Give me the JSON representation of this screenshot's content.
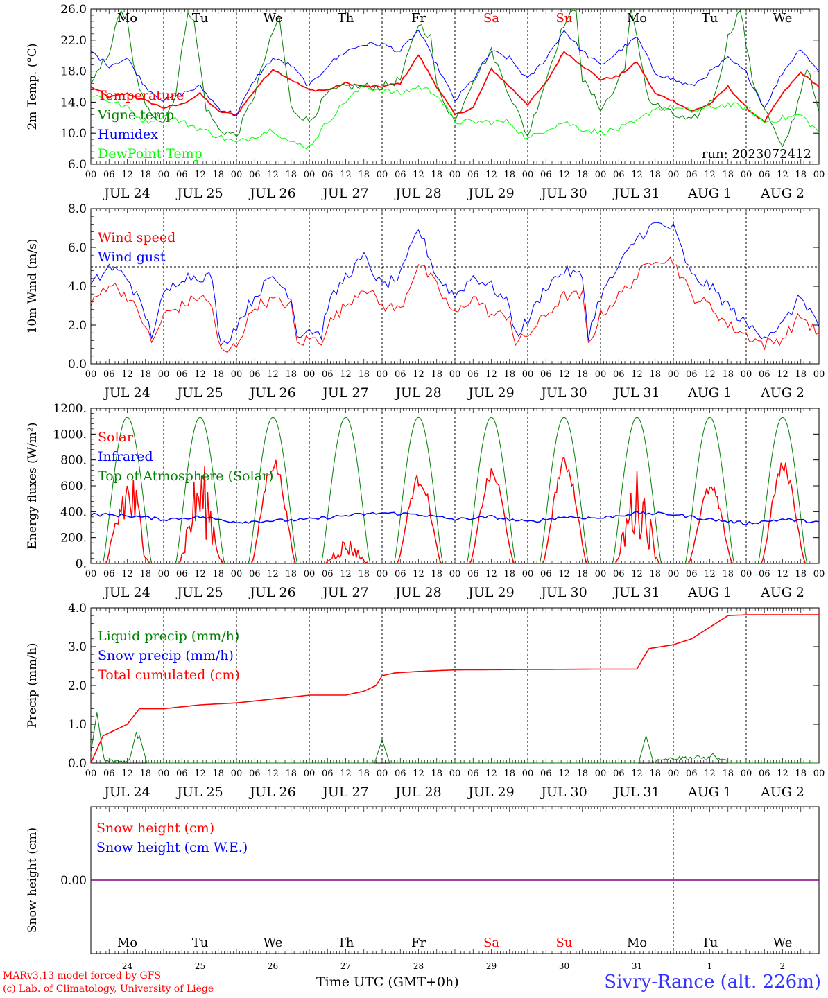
{
  "run_label": "run: 2023072412",
  "day_ticks": [
    "00",
    "06",
    "12",
    "18"
  ],
  "date_labels": [
    "JUL 24",
    "JUL 25",
    "JUL 26",
    "JUL 27",
    "JUL 28",
    "JUL 29",
    "JUL 30",
    "JUL 31",
    "AUG  1",
    "AUG  2"
  ],
  "weekdays": [
    {
      "label": "Mo",
      "weekend": false
    },
    {
      "label": "Tu",
      "weekend": false
    },
    {
      "label": "We",
      "weekend": false
    },
    {
      "label": "Th",
      "weekend": false
    },
    {
      "label": "Fr",
      "weekend": false
    },
    {
      "label": "Sa",
      "weekend": true
    },
    {
      "label": "Su",
      "weekend": true
    },
    {
      "label": "Mo",
      "weekend": false
    },
    {
      "label": "Tu",
      "weekend": false
    },
    {
      "label": "We",
      "weekend": false
    }
  ],
  "day_numbers": [
    "24",
    "25",
    "26",
    "27",
    "28",
    "29",
    "30",
    "31",
    "1",
    "2"
  ],
  "colors": {
    "red": "#ff0000",
    "green": "#008000",
    "blue": "#0000ff",
    "light_green": "#00ff00",
    "weekend": "#ff0000",
    "purple": "#800080"
  },
  "footer": {
    "credit1": "MARv3.13 model forced by GFS",
    "credit2": "(c) Lab. of Climatology, University of Liege",
    "xaxis_label": "Time UTC (GMT+0h)",
    "station": "Sivry-Rance (alt. 226m)"
  },
  "chart_data": [
    {
      "type": "line",
      "ylabel": "2m Temp. (°C)",
      "ylim": [
        6,
        28
      ],
      "yticks": [
        "6.0",
        "10.0",
        "14.0",
        "18.0",
        "22.0",
        "26.0"
      ],
      "x_unit": "hours since JUL 24 00 UTC",
      "series": [
        {
          "name": "Temperature",
          "color": "#ff0000",
          "x": [
            0,
            6,
            12,
            18,
            24,
            30,
            36,
            42,
            48,
            54,
            60,
            66,
            72,
            78,
            84,
            90,
            96,
            102,
            108,
            114,
            120,
            126,
            132,
            138,
            144,
            150,
            156,
            162,
            168,
            174,
            180,
            186,
            192,
            198,
            204,
            210,
            216,
            222,
            228,
            234,
            240
          ],
          "y": [
            17,
            15.5,
            16,
            15,
            14,
            14.5,
            16,
            13.5,
            13,
            16.5,
            19.5,
            18,
            16.5,
            16.5,
            17.5,
            17,
            17,
            17.5,
            21.5,
            17,
            13,
            14,
            19.5,
            17,
            14.5,
            17.5,
            22,
            20,
            18,
            18.5,
            20.5,
            16,
            15,
            13.5,
            14.5,
            17,
            14,
            12,
            16,
            19,
            17
          ]
        },
        {
          "name": "Vigne temp",
          "color": "#008000",
          "x": [
            0,
            6,
            10,
            12,
            14,
            18,
            24,
            28,
            32,
            34,
            38,
            42,
            48,
            54,
            58,
            62,
            66,
            72,
            78,
            84,
            90,
            96,
            102,
            108,
            112,
            114,
            120,
            126,
            132,
            138,
            144,
            150,
            156,
            160,
            162,
            168,
            172,
            176,
            178,
            184,
            192,
            198,
            206,
            210,
            214,
            218,
            224,
            228,
            232,
            236,
            240
          ],
          "y": [
            17,
            22,
            28,
            26,
            20,
            14,
            12,
            16,
            28,
            26,
            14,
            11,
            10,
            16,
            22,
            27,
            14,
            12,
            16,
            17,
            17,
            17,
            18,
            26,
            24,
            17,
            12,
            18,
            22,
            16,
            10,
            18,
            26,
            28,
            18,
            14,
            16,
            20,
            28,
            15,
            13,
            12,
            16,
            24,
            28,
            18,
            12,
            8,
            13,
            20,
            13
          ]
        },
        {
          "name": "Humidex",
          "color": "#0000ff",
          "x": [
            0,
            6,
            12,
            18,
            24,
            30,
            36,
            42,
            48,
            54,
            60,
            66,
            72,
            78,
            84,
            90,
            96,
            102,
            108,
            114,
            120,
            126,
            132,
            138,
            144,
            150,
            156,
            162,
            168,
            174,
            180,
            186,
            192,
            198,
            204,
            210,
            216,
            222,
            228,
            234,
            240
          ],
          "y": [
            22,
            20,
            21,
            17,
            15,
            16,
            17,
            14,
            13,
            18,
            21,
            20,
            17,
            20,
            22,
            23,
            23,
            22,
            25,
            20,
            15,
            18,
            22,
            21,
            18,
            21,
            25,
            22,
            20,
            22,
            24,
            19,
            18,
            17,
            19,
            21,
            19,
            14,
            19,
            22.5,
            19
          ]
        },
        {
          "name": "DewPoint Temp",
          "color": "#00ff00",
          "x": [
            0,
            6,
            12,
            18,
            24,
            30,
            36,
            42,
            48,
            54,
            60,
            66,
            72,
            78,
            84,
            90,
            96,
            102,
            108,
            114,
            120,
            126,
            132,
            138,
            144,
            150,
            156,
            162,
            168,
            174,
            180,
            186,
            192,
            198,
            204,
            210,
            216,
            222,
            228,
            234,
            240
          ],
          "y": [
            16,
            15,
            14,
            12,
            13,
            12,
            11,
            10,
            9,
            10,
            11,
            9,
            8.5,
            12,
            15,
            17,
            16.5,
            16,
            17,
            16,
            12,
            12,
            12,
            12,
            9.5,
            11,
            12,
            11,
            10.5,
            11,
            12,
            14,
            14,
            13.5,
            14,
            14.5,
            14,
            12,
            12.5,
            13,
            10.5
          ]
        }
      ]
    },
    {
      "type": "line",
      "ylabel": "10m Wind (m/s)",
      "ylim": [
        0,
        8
      ],
      "yticks": [
        "0.0",
        "2.0",
        "4.0",
        "6.0",
        "8.0"
      ],
      "reference_line": 5,
      "series": [
        {
          "name": "Wind speed",
          "color": "#ff0000",
          "x": [
            0,
            6,
            12,
            18,
            20,
            24,
            30,
            36,
            40,
            42,
            44,
            48,
            54,
            60,
            66,
            68,
            72,
            76,
            78,
            84,
            90,
            96,
            102,
            108,
            114,
            120,
            126,
            132,
            138,
            140,
            144,
            150,
            156,
            162,
            164,
            168,
            174,
            180,
            186,
            192,
            198,
            204,
            210,
            216,
            222,
            228,
            234,
            240
          ],
          "y": [
            3,
            4.2,
            3.5,
            2,
            1,
            2.5,
            3,
            3.5,
            3,
            1,
            0.5,
            1,
            3,
            3.3,
            3,
            1,
            1.3,
            1.2,
            2,
            3,
            4,
            3,
            2.8,
            5.2,
            4,
            2.5,
            3.5,
            2.5,
            2.5,
            1,
            1.5,
            2.5,
            3.5,
            3.5,
            1,
            2.5,
            3.5,
            4.5,
            5.5,
            5.3,
            3.5,
            3,
            2,
            1.5,
            1,
            1.3,
            2.5,
            1.5
          ]
        },
        {
          "name": "Wind gust",
          "color": "#0000ff",
          "x": [
            0,
            6,
            12,
            18,
            20,
            24,
            30,
            36,
            40,
            42,
            44,
            48,
            54,
            60,
            66,
            68,
            72,
            76,
            78,
            84,
            90,
            96,
            102,
            108,
            114,
            120,
            126,
            132,
            138,
            140,
            144,
            150,
            156,
            162,
            164,
            168,
            174,
            180,
            186,
            192,
            198,
            204,
            210,
            216,
            222,
            228,
            234,
            240
          ],
          "y": [
            4,
            5,
            4.5,
            2.5,
            1.5,
            3.5,
            4.5,
            4.5,
            4.5,
            1.5,
            1,
            2,
            3.5,
            4.5,
            3.5,
            1.5,
            1.8,
            1.5,
            3,
            4.5,
            5.5,
            4,
            4.5,
            7,
            4.5,
            3.5,
            4.5,
            4,
            3,
            1.5,
            2.2,
            4,
            4.8,
            4.5,
            1.5,
            3.5,
            5,
            6.5,
            7.2,
            7,
            4.5,
            4,
            3,
            2,
            1.5,
            2,
            3.5,
            2
          ]
        }
      ]
    },
    {
      "type": "line",
      "ylabel": "Energy fluxes (W/m²)",
      "ylim": [
        0,
        1200
      ],
      "yticks": [
        "0.",
        "200.",
        "400.",
        "600.",
        "800.",
        "1000.",
        "1200."
      ],
      "series": [
        {
          "name": "Solar",
          "color": "#ff0000",
          "peaks": [
            800,
            800,
            830,
            200,
            700,
            740,
            830,
            740,
            620,
            800
          ]
        },
        {
          "name": "Infrared",
          "color": "#0000ff",
          "x": [
            0,
            12,
            24,
            36,
            48,
            60,
            72,
            84,
            96,
            108,
            120,
            132,
            144,
            156,
            168,
            180,
            192,
            204,
            216,
            228,
            240
          ],
          "y": [
            380,
            370,
            340,
            360,
            320,
            330,
            340,
            370,
            390,
            380,
            340,
            360,
            320,
            360,
            350,
            390,
            380,
            340,
            310,
            340,
            320
          ]
        },
        {
          "name": "Top of Atmosphere (Solar)",
          "color": "#008000",
          "peak": 1130
        }
      ]
    },
    {
      "type": "line",
      "ylabel": "Precip (mm/h)",
      "ylim": [
        0,
        4
      ],
      "yticks": [
        "0.0",
        "1.0",
        "2.0",
        "3.0",
        "4.0"
      ],
      "series": [
        {
          "name": "Liquid precip (mm/h)",
          "color": "#008000",
          "spikes": [
            [
              2,
              1.3
            ],
            [
              15,
              0.8
            ],
            [
              16,
              0.7
            ],
            [
              96,
              0.6
            ],
            [
              183,
              0.7
            ],
            [
              205,
              0.25
            ]
          ]
        },
        {
          "name": "Snow precip (mm/h)",
          "color": "#0000ff"
        },
        {
          "name": "Total cumulated (cm)",
          "color": "#ff0000",
          "x": [
            0,
            4,
            12,
            14,
            16,
            24,
            36,
            48,
            60,
            72,
            84,
            90,
            94,
            96,
            100,
            108,
            120,
            144,
            168,
            180,
            182,
            184,
            192,
            198,
            204,
            210,
            216,
            240
          ],
          "y": [
            0,
            0.7,
            1,
            1.2,
            1.4,
            1.4,
            1.5,
            1.55,
            1.65,
            1.75,
            1.75,
            1.85,
            2.0,
            2.25,
            2.32,
            2.36,
            2.4,
            2.41,
            2.42,
            2.42,
            2.7,
            2.95,
            3.05,
            3.2,
            3.5,
            3.8,
            3.82,
            3.82
          ]
        }
      ]
    },
    {
      "type": "line",
      "ylabel": "Snow height (cm)",
      "yticks": [
        "0.00"
      ],
      "series": [
        {
          "name": "Snow height (cm)",
          "color": "#ff0000",
          "y": [
            0,
            0
          ]
        },
        {
          "name": "Snow height (cm W.E.)",
          "color": "#0000ff",
          "y": [
            0,
            0
          ]
        }
      ]
    }
  ]
}
